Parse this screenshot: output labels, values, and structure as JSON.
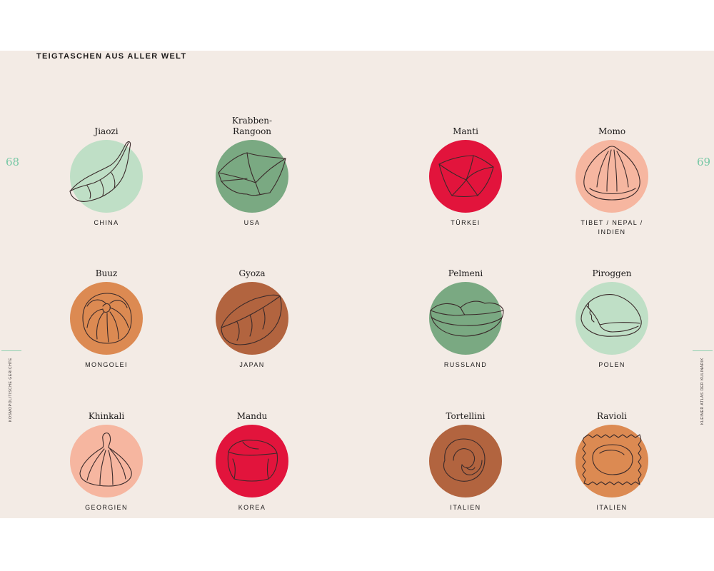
{
  "page": {
    "section_title": "TEIGTASCHEN AUS ALLER WELT",
    "page_left": "68",
    "page_right": "69",
    "side_left": "KOSMOPOLITISCHE GERICHTE",
    "side_right": "KLEINER ATLAS DER KULINARIK"
  },
  "dumplings": [
    {
      "name": "Jiaozi",
      "country": "CHINA",
      "color": "#bfdfc6",
      "icon": "jiaozi-icon"
    },
    {
      "name": "Krabben-\nRangoon",
      "country": "USA",
      "color": "#7aa982",
      "icon": "krabben-rangoon-icon"
    },
    {
      "name": "Manti",
      "country": "TÜRKEI",
      "color": "#e2143c",
      "icon": "manti-icon"
    },
    {
      "name": "Momo",
      "country": "TIBET / NEPAL /\nINDIEN",
      "color": "#f6b6a0",
      "icon": "momo-icon"
    },
    {
      "name": "Buuz",
      "country": "MONGOLEI",
      "color": "#dc8a52",
      "icon": "buuz-icon"
    },
    {
      "name": "Gyoza",
      "country": "JAPAN",
      "color": "#b2643f",
      "icon": "gyoza-icon"
    },
    {
      "name": "Pelmeni",
      "country": "RUSSLAND",
      "color": "#7aa982",
      "icon": "pelmeni-icon"
    },
    {
      "name": "Piroggen",
      "country": "POLEN",
      "color": "#bfdfc6",
      "icon": "piroggen-icon"
    },
    {
      "name": "Khinkali",
      "country": "GEORGIEN",
      "color": "#f6b6a0",
      "icon": "khinkali-icon"
    },
    {
      "name": "Mandu",
      "country": "KOREA",
      "color": "#e2143c",
      "icon": "mandu-icon"
    },
    {
      "name": "Tortellini",
      "country": "ITALIEN",
      "color": "#b2643f",
      "icon": "tortellini-icon"
    },
    {
      "name": "Ravioli",
      "country": "ITALIEN",
      "color": "#dc8a52",
      "icon": "ravioli-icon"
    }
  ]
}
